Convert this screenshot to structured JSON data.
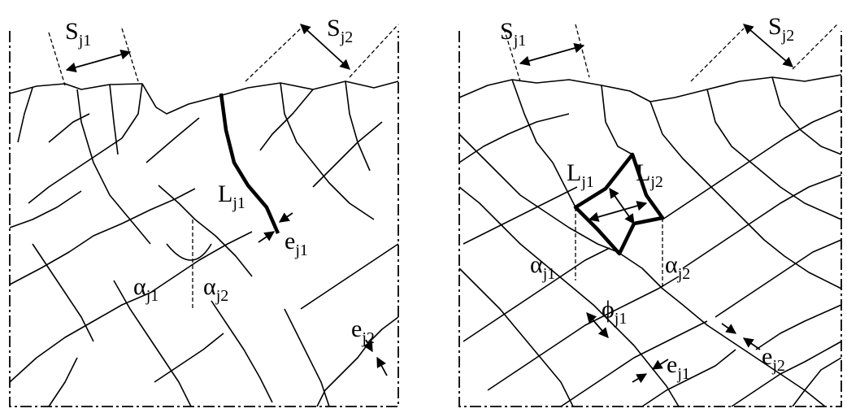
{
  "left_panel": {
    "labels": [
      {
        "symbol": "S",
        "subscript": "j1"
      },
      {
        "symbol": "S",
        "subscript": "j2"
      },
      {
        "symbol": "L",
        "subscript": "j1"
      },
      {
        "symbol": "e",
        "subscript": "j1"
      },
      {
        "symbol": "α",
        "subscript": "j1"
      },
      {
        "symbol": "α",
        "subscript": "j2"
      },
      {
        "symbol": "e",
        "subscript": "j2"
      }
    ]
  },
  "right_panel": {
    "labels": [
      {
        "symbol": "S",
        "subscript": "j1"
      },
      {
        "symbol": "S",
        "subscript": "j2"
      },
      {
        "symbol": "L",
        "subscript": "j1"
      },
      {
        "symbol": "L",
        "subscript": "j2"
      },
      {
        "symbol": "α",
        "subscript": "j1"
      },
      {
        "symbol": "α",
        "subscript": "j2"
      },
      {
        "symbol": "ϕ",
        "subscript": "j1"
      },
      {
        "symbol": "e",
        "subscript": "j1"
      },
      {
        "symbol": "e",
        "subscript": "j2"
      }
    ]
  }
}
